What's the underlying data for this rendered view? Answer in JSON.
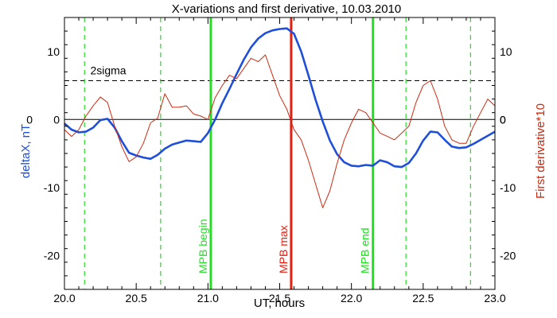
{
  "chart_data": {
    "type": "line",
    "title": "X-variations and first derivative, 10.03.2010",
    "xlabel": "UT, hours",
    "ylabel_left": "deltaX, nT",
    "ylabel_right": "First derivative*10",
    "xlim": [
      20.0,
      23.0
    ],
    "ylim": [
      -25,
      15
    ],
    "x_ticks": [
      "20.0",
      "20.5",
      "21.0",
      "21.5",
      "22.0",
      "22.5",
      "23.0"
    ],
    "y_ticks": [
      "10",
      "0",
      "-10",
      "-20"
    ],
    "sigma_label": "2sigma",
    "sigma_level": 5.7,
    "zero_level": 0,
    "series": [
      {
        "name": "deltaX, nT",
        "color": "#1f4fd8",
        "x": [
          20.0,
          20.05,
          20.1,
          20.15,
          20.2,
          20.25,
          20.3,
          20.35,
          20.4,
          20.45,
          20.5,
          20.55,
          20.6,
          20.65,
          20.7,
          20.75,
          20.8,
          20.85,
          20.9,
          20.95,
          21.0,
          21.05,
          21.1,
          21.15,
          21.2,
          21.25,
          21.3,
          21.35,
          21.4,
          21.45,
          21.5,
          21.55,
          21.6,
          21.65,
          21.7,
          21.75,
          21.8,
          21.85,
          21.9,
          21.95,
          22.0,
          22.05,
          22.1,
          22.15,
          22.2,
          22.25,
          22.3,
          22.35,
          22.4,
          22.45,
          22.5,
          22.55,
          22.6,
          22.65,
          22.7,
          22.75,
          22.8,
          22.85,
          22.9,
          22.95,
          23.0
        ],
        "y": [
          -0.6,
          -1.5,
          -1.9,
          -1.8,
          -1.2,
          -0.1,
          0.1,
          -1.2,
          -3.2,
          -4.9,
          -5.3,
          -5.6,
          -5.8,
          -5.2,
          -4.3,
          -3.7,
          -3.4,
          -3.1,
          -3.2,
          -3.3,
          -2.0,
          0.0,
          2.4,
          4.5,
          6.7,
          8.8,
          10.6,
          11.9,
          12.7,
          13.1,
          13.3,
          13.4,
          12.6,
          10.0,
          6.5,
          2.9,
          -0.3,
          -3.1,
          -5.1,
          -6.3,
          -6.8,
          -6.9,
          -6.7,
          -6.8,
          -6.0,
          -6.3,
          -6.9,
          -7.0,
          -6.4,
          -5.0,
          -3.1,
          -1.8,
          -1.9,
          -3.0,
          -4.0,
          -4.2,
          -4.1,
          -3.6,
          -3.0,
          -2.4,
          -1.8
        ]
      },
      {
        "name": "First derivative*10",
        "color": "#cc2a10",
        "x": [
          20.0,
          20.05,
          20.1,
          20.15,
          20.2,
          20.25,
          20.3,
          20.35,
          20.4,
          20.45,
          20.5,
          20.55,
          20.6,
          20.65,
          20.7,
          20.75,
          20.8,
          20.85,
          20.9,
          20.95,
          21.0,
          21.05,
          21.1,
          21.15,
          21.2,
          21.25,
          21.3,
          21.35,
          21.4,
          21.45,
          21.5,
          21.55,
          21.6,
          21.65,
          21.7,
          21.75,
          21.8,
          21.85,
          21.9,
          21.95,
          22.0,
          22.05,
          22.1,
          22.15,
          22.2,
          22.25,
          22.3,
          22.35,
          22.4,
          22.45,
          22.5,
          22.55,
          22.6,
          22.65,
          22.7,
          22.75,
          22.8,
          22.85,
          22.9,
          22.95,
          23.0
        ],
        "y": [
          -1.5,
          -2.5,
          -1.5,
          0.5,
          2.0,
          3.3,
          2.5,
          -1.0,
          -4.0,
          -6.2,
          -5.5,
          -3.5,
          -0.5,
          0.2,
          3.8,
          1.8,
          1.8,
          2.0,
          0.8,
          0.5,
          0.0,
          3.2,
          5.0,
          6.5,
          6.0,
          7.5,
          9.0,
          8.5,
          9.5,
          6.5,
          3.5,
          1.5,
          -1.5,
          -3.0,
          -6.0,
          -9.5,
          -13.0,
          -10.5,
          -6.5,
          -3.0,
          -0.5,
          1.5,
          1.0,
          -0.5,
          -2.0,
          -2.5,
          -3.0,
          -2.0,
          -1.0,
          2.5,
          5.0,
          5.7,
          3.0,
          -1.0,
          -3.0,
          -3.5,
          -3.5,
          -1.0,
          1.0,
          3.0,
          2.0
        ]
      }
    ],
    "vertical_markers": [
      {
        "x": 21.02,
        "label": "MPB begin",
        "color": "#22dd22",
        "style": "solid"
      },
      {
        "x": 21.58,
        "label": "MPB max",
        "color": "#e02010",
        "style": "solid"
      },
      {
        "x": 22.15,
        "label": "MPB end",
        "color": "#22dd22",
        "style": "solid"
      },
      {
        "x": 20.14,
        "label": "",
        "color": "#22dd22",
        "style": "dashed"
      },
      {
        "x": 20.67,
        "label": "",
        "color": "#22dd22",
        "style": "dashed"
      },
      {
        "x": 22.38,
        "label": "",
        "color": "#22dd22",
        "style": "dashed"
      },
      {
        "x": 22.83,
        "label": "",
        "color": "#22dd22",
        "style": "dashed"
      }
    ]
  }
}
